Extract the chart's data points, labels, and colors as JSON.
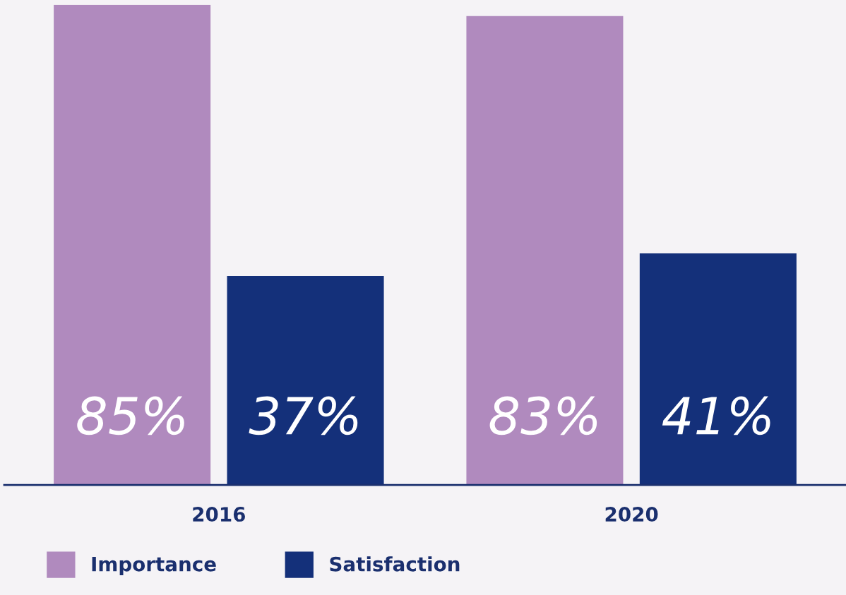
{
  "chart_data": {
    "type": "bar",
    "categories": [
      "2016",
      "2020"
    ],
    "series": [
      {
        "name": "Importance",
        "color": "#b08abe",
        "values": [
          85,
          83
        ],
        "value_labels": [
          "85%",
          "83%"
        ]
      },
      {
        "name": "Satisfaction",
        "color": "#14307a",
        "values": [
          37,
          41
        ],
        "value_labels": [
          "37%",
          "41%"
        ]
      }
    ],
    "legend": "bottom left",
    "grid": false
  }
}
